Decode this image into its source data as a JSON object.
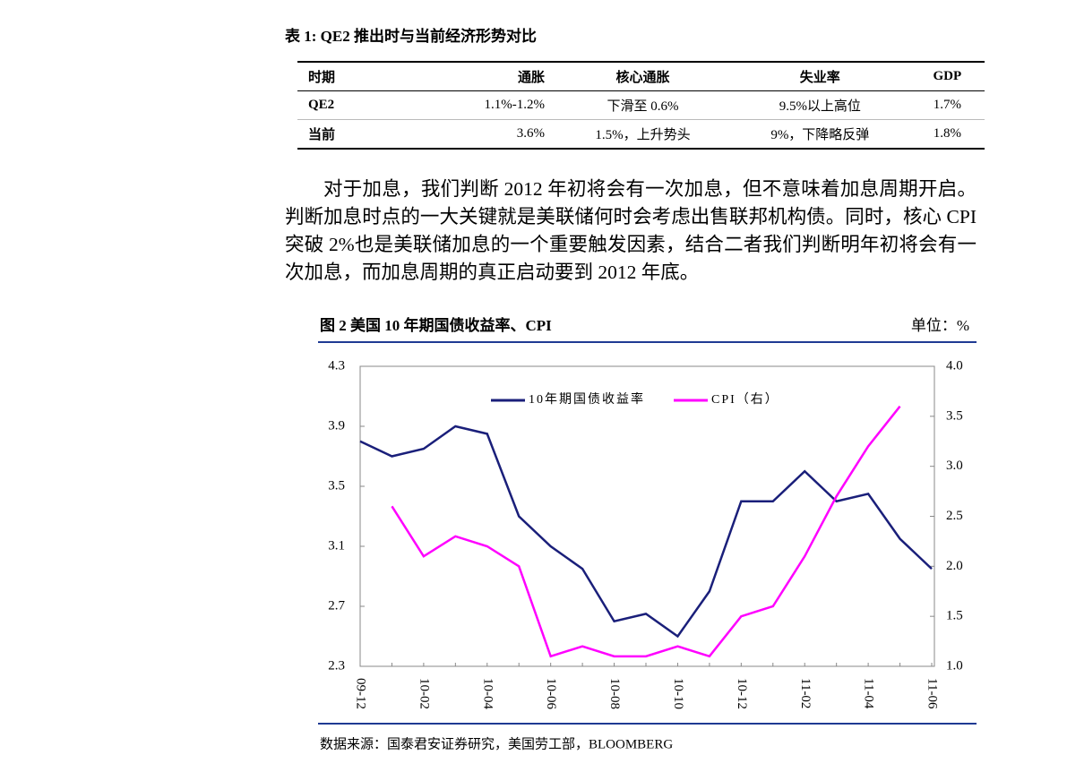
{
  "table": {
    "title": "表 1: QE2 推出时与当前经济形势对比",
    "header": [
      "时期",
      "通胀",
      "核心通胀",
      "失业率",
      "GDP"
    ],
    "rows": [
      [
        "QE2",
        "1.1%-1.2%",
        "下滑至 0.6%",
        "9.5%以上高位",
        "1.7%"
      ],
      [
        "当前",
        "3.6%",
        "1.5%，上升势头",
        "9%，下降略反弹",
        "1.8%"
      ]
    ]
  },
  "paragraph": "对于加息，我们判断 2012 年初将会有一次加息，但不意味着加息周期开启。判断加息时点的一大关键就是美联储何时会考虑出售联邦机构债。同时，核心 CPI 突破 2%也是美联储加息的一个重要触发因素，结合二者我们判断明年初将会有一次加息，而加息周期的真正启动要到 2012 年底。",
  "chart_data": {
    "type": "line",
    "title": "图 2 美国 10 年期国债收益率、CPI",
    "unit": "单位：%",
    "source": "数据来源：国泰君安证券研究，美国劳工部，BLOOMBERG",
    "categories": [
      "09-12",
      null,
      "10-02",
      null,
      "10-04",
      null,
      "10-06",
      null,
      "10-08",
      null,
      "10-10",
      null,
      "10-12",
      null,
      "11-02",
      null,
      "11-04",
      null,
      "11-06"
    ],
    "series": [
      {
        "name": "10年期国债收益率",
        "color": "#1a1f7a",
        "values": [
          3.8,
          3.7,
          3.75,
          3.9,
          3.85,
          3.3,
          3.1,
          2.95,
          2.6,
          2.65,
          2.5,
          2.8,
          3.4,
          3.4,
          3.6,
          3.4,
          3.45,
          3.15,
          2.95
        ]
      },
      {
        "name": "CPI（右）",
        "color": "#ff00ff",
        "axis": "y2",
        "values": [
          null,
          2.6,
          2.1,
          2.3,
          2.2,
          2.0,
          1.1,
          1.2,
          1.1,
          1.1,
          1.2,
          1.1,
          1.5,
          1.6,
          2.1,
          2.7,
          3.2,
          3.6,
          null
        ]
      }
    ],
    "ylim": [
      2.3,
      4.3
    ],
    "yticks": [
      2.3,
      2.7,
      3.1,
      3.5,
      3.9,
      4.3
    ],
    "y2lim": [
      1.0,
      4.0
    ],
    "y2ticks": [
      {
        "value": 1.0,
        "label": "1.0"
      },
      1.5,
      {
        "value": 2.0,
        "label": "2.0"
      },
      2.5,
      {
        "value": 3.0,
        "label": "3.0"
      },
      3.5,
      {
        "value": 4.0,
        "label": "4.0"
      }
    ]
  }
}
